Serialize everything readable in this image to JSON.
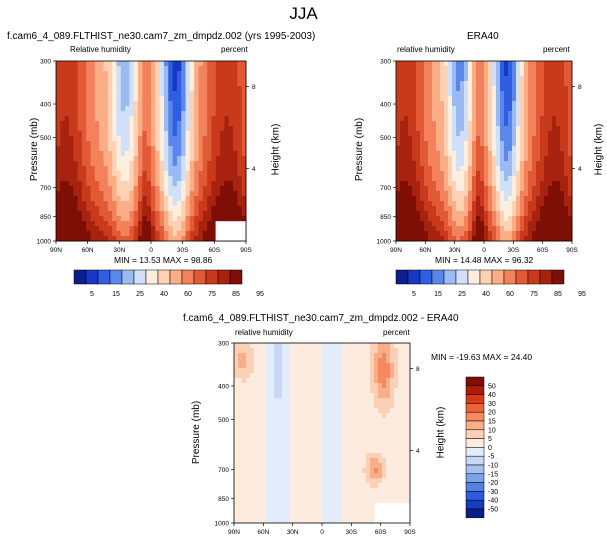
{
  "figure": {
    "season_title": "JJA"
  },
  "panels": [
    {
      "id": "model",
      "title": "f.cam6_4_089.FLTHIST_ne30.cam7_zm_dmpdz.002 (yrs 1995-2003)",
      "left_label": "Relative humidity",
      "right_label": "percent",
      "y_axis_label": "Pressure (mb)",
      "y2_axis_label": "Height (km)",
      "minmax_text": "MIN = 13.53  MAX = 98.86"
    },
    {
      "id": "obs",
      "title": "ERA40",
      "left_label": "relative humidity",
      "right_label": "percent",
      "y_axis_label": "Pressure (mb)",
      "y2_axis_label": "Height (km)",
      "minmax_text": "MIN = 14.48  MAX = 96.32"
    },
    {
      "id": "diff",
      "title": "f.cam6_4_089.FLTHIST_ne30.cam7_zm_dmpdz.002 - ERA40",
      "left_label": "relative humidity",
      "right_label": "percent",
      "y_axis_label": "Pressure (mb)",
      "y2_axis_label": "Height (km)",
      "minmax_text": "MIN = -19.63  MAX = 24.40"
    }
  ],
  "chart_data": [
    {
      "type": "heatmap",
      "title": "f.cam6_4_089.FLTHIST_ne30.cam7_zm_dmpdz.002 (yrs 1995-2003)",
      "xlabel": "",
      "ylabel": "Pressure (mb)",
      "y2label": "Height (km)",
      "x_ticks": [
        "90N",
        "60N",
        "30N",
        "0",
        "30S",
        "60S",
        "90S"
      ],
      "y_ticks": [
        "300",
        "400",
        "500",
        "700",
        "850",
        "1000"
      ],
      "y2_ticks": [
        "8",
        "4"
      ],
      "y_scale": "log (pressure)",
      "min": 13.53,
      "max": 98.86
    },
    {
      "type": "heatmap",
      "title": "ERA40",
      "xlabel": "",
      "ylabel": "Pressure (mb)",
      "y2label": "Height (km)",
      "x_ticks": [
        "90N",
        "60N",
        "30N",
        "0",
        "30S",
        "60S",
        "90S"
      ],
      "y_ticks": [
        "300",
        "400",
        "500",
        "700",
        "850",
        "1000"
      ],
      "y2_ticks": [
        "8",
        "4"
      ],
      "y_scale": "log (pressure)",
      "min": 14.48,
      "max": 96.32
    },
    {
      "type": "heatmap",
      "title": "f.cam6_4_089.FLTHIST_ne30.cam7_zm_dmpdz.002 - ERA40",
      "xlabel": "",
      "ylabel": "Pressure (mb)",
      "y2label": "Height (km)",
      "x_ticks": [
        "90N",
        "60N",
        "30N",
        "0",
        "30S",
        "60S",
        "90S"
      ],
      "y_ticks": [
        "300",
        "400",
        "500",
        "700",
        "850",
        "1000"
      ],
      "y2_ticks": [
        "8",
        "4"
      ],
      "y_scale": "log (pressure)",
      "min": -19.63,
      "max": 24.4
    }
  ],
  "colorbars": {
    "absolute": {
      "labels": [
        "5",
        "15",
        "25",
        "40",
        "60",
        "75",
        "85",
        "95"
      ],
      "colors": [
        "#0b1e8c",
        "#1737c4",
        "#2f5fe0",
        "#5b87ec",
        "#9cbaf2",
        "#cfe0f8",
        "#fdeee0",
        "#fdd1b3",
        "#fbad86",
        "#f3825c",
        "#e25a35",
        "#c93a1c",
        "#a8230f",
        "#7e0f06"
      ]
    },
    "difference": {
      "labels": [
        "50",
        "40",
        "30",
        "20",
        "15",
        "10",
        "5",
        "0",
        "-5",
        "-10",
        "-15",
        "-20",
        "-30",
        "-40",
        "-50"
      ],
      "colors": [
        "#7e0f06",
        "#b01a0a",
        "#d83a18",
        "#ee6236",
        "#f58a5e",
        "#f9ad89",
        "#fcd0b5",
        "#fdebdf",
        "#e3ecfa",
        "#c6d8f6",
        "#a5c0f1",
        "#7ea2ea",
        "#5580e4",
        "#2e5cdc",
        "#173cc0",
        "#0a1f8a"
      ]
    }
  }
}
